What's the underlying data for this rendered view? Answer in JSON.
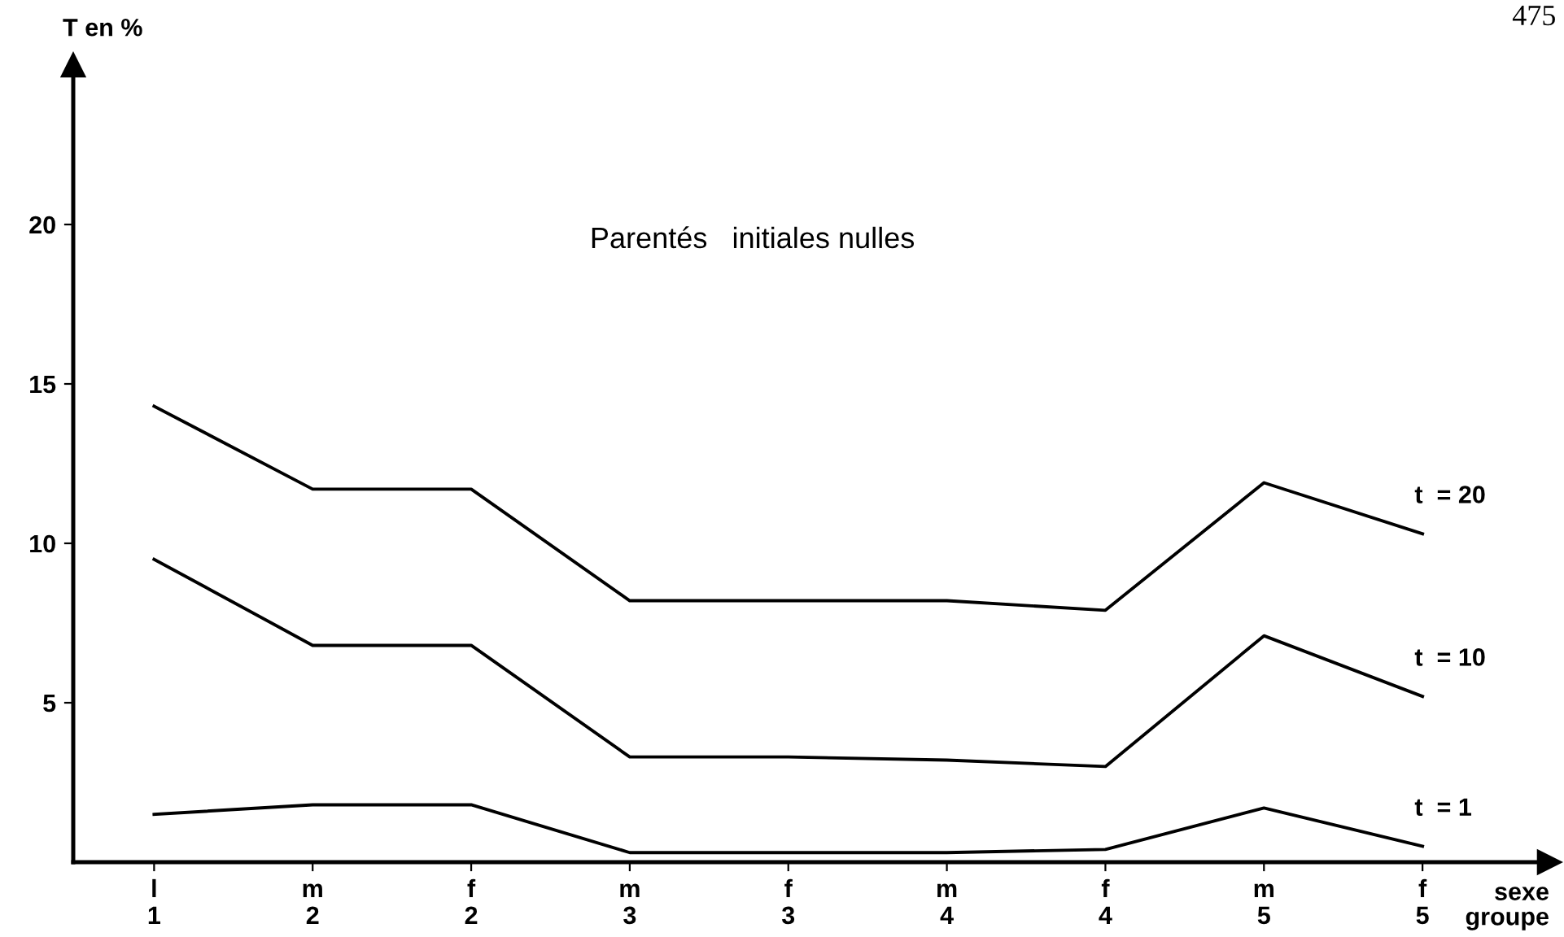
{
  "chart_data": {
    "type": "line",
    "title": "Parentés   initiales nulles",
    "ylabel": "T en %",
    "xlabel": "sexe\ngroupe",
    "categories": [
      "l\n1",
      "m\n2",
      "f\n2",
      "m\n3",
      "f\n3",
      "m\n4",
      "f\n4",
      "m\n5",
      "f\n5"
    ],
    "series": [
      {
        "name": "t  = 20",
        "color": "#000000",
        "values": [
          14.3,
          11.7,
          11.7,
          8.2,
          8.2,
          8.2,
          7.9,
          11.9,
          10.3
        ]
      },
      {
        "name": "t  = 10",
        "color": "#000000",
        "values": [
          9.5,
          6.8,
          6.8,
          3.3,
          3.3,
          3.2,
          3.0,
          7.1,
          5.2
        ]
      },
      {
        "name": "t  = 1",
        "color": "#000000",
        "values": [
          1.5,
          1.8,
          1.8,
          0.3,
          0.3,
          0.3,
          0.4,
          1.7,
          0.5
        ]
      }
    ],
    "ylim": [
      0,
      25
    ],
    "yticks": [
      5,
      10,
      15,
      20
    ],
    "grid": false,
    "legend": false,
    "line_style": "solid",
    "annotations": [
      "475"
    ]
  }
}
